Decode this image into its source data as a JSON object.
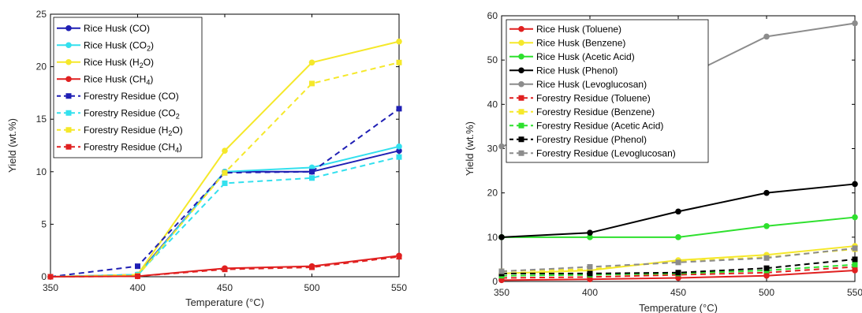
{
  "chart_data": [
    {
      "type": "line",
      "title": "",
      "xlabel": "Temperature (°C)",
      "ylabel": "Yield (wt.%)",
      "x": [
        350,
        400,
        450,
        500,
        550
      ],
      "xlim": [
        350,
        550
      ],
      "ylim": [
        0,
        25
      ],
      "yticks": [
        0,
        5,
        10,
        15,
        20,
        25
      ],
      "xticks": [
        350,
        400,
        450,
        500,
        550
      ],
      "grid": false,
      "legend_position": "top-left",
      "series": [
        {
          "name": "Rice Husk (CO)",
          "name_parts": [
            "Rice Husk (CO)"
          ],
          "values": [
            0,
            0.2,
            10.0,
            10.0,
            12.0
          ],
          "color": "#1f1fb4",
          "dash": false
        },
        {
          "name": "Rice Husk (CO2)",
          "name_parts": [
            "Rice Husk (CO",
            "2",
            ")"
          ],
          "values": [
            0,
            0.1,
            10.0,
            10.4,
            12.4
          ],
          "color": "#33e0ee",
          "dash": false
        },
        {
          "name": "Rice Husk (H2O)",
          "name_parts": [
            "Rice Husk (H",
            "2",
            "O)"
          ],
          "values": [
            0,
            0.2,
            12.0,
            20.4,
            22.4
          ],
          "color": "#f5e82a",
          "dash": false
        },
        {
          "name": "Rice Husk (CH4)",
          "name_parts": [
            "Rice Husk (CH",
            "4",
            ")"
          ],
          "values": [
            0,
            0.05,
            0.8,
            1.0,
            2.0
          ],
          "color": "#e02020",
          "dash": false
        },
        {
          "name": "Forestry Residue (CO)",
          "name_parts": [
            "Forestry Residue (CO)"
          ],
          "values": [
            0,
            1.0,
            9.9,
            10.0,
            16.0
          ],
          "color": "#1f1fb4",
          "dash": true
        },
        {
          "name": "Forestry Residue (CO2)",
          "name_parts": [
            "Forestry Residue (CO",
            "2",
            ""
          ],
          "values": [
            0,
            0.2,
            8.9,
            9.4,
            11.4
          ],
          "color": "#33e0ee",
          "dash": true
        },
        {
          "name": "Forestry Residue (H2O)",
          "name_parts": [
            "Forestry Residue (H",
            "2",
            "O)"
          ],
          "values": [
            0,
            0.1,
            9.9,
            18.4,
            20.4
          ],
          "color": "#f5e82a",
          "dash": true
        },
        {
          "name": "Forestry Residue (CH4)",
          "name_parts": [
            "Forestry Residue (CH",
            "4",
            ")"
          ],
          "values": [
            0,
            0.05,
            0.7,
            0.9,
            1.9
          ],
          "color": "#e02020",
          "dash": true
        }
      ]
    },
    {
      "type": "line",
      "title": "",
      "xlabel": "Temperature (°C)",
      "ylabel": "Yield (wt.%)",
      "x": [
        350,
        400,
        450,
        500,
        550
      ],
      "xlim": [
        350,
        550
      ],
      "ylim": [
        0,
        60
      ],
      "yticks": [
        0,
        10,
        20,
        30,
        40,
        50,
        60
      ],
      "xticks": [
        350,
        400,
        450,
        500,
        550
      ],
      "grid": false,
      "legend_position": "top-left",
      "series": [
        {
          "name": "Rice Husk (Toluene)",
          "name_parts": [
            "Rice Husk (Toluene)"
          ],
          "values": [
            0.3,
            0.5,
            0.8,
            1.3,
            2.5
          ],
          "color": "#e02020",
          "dash": false
        },
        {
          "name": "Rice Husk (Benzene)",
          "name_parts": [
            "Rice Husk (Benzene)"
          ],
          "values": [
            1.8,
            2.5,
            4.8,
            6.0,
            8.0
          ],
          "color": "#f5e82a",
          "dash": false
        },
        {
          "name": "Rice Husk (Acetic Acid)",
          "name_parts": [
            "Rice Husk (Acetic Acid)"
          ],
          "values": [
            10.0,
            10.0,
            10.0,
            12.5,
            14.5
          ],
          "color": "#2ee02e",
          "dash": false
        },
        {
          "name": "Rice Husk (Phenol)",
          "name_parts": [
            "Rice Husk (Phenol)"
          ],
          "values": [
            10.0,
            11.0,
            15.8,
            20.0,
            22.0
          ],
          "color": "#000000",
          "dash": false
        },
        {
          "name": "Rice Husk (Levoglucosan)",
          "name_parts": [
            "Rice Husk (Levoglucosan)"
          ],
          "values": [
            30.5,
            36.5,
            45.5,
            55.3,
            58.3
          ],
          "color": "#8c8c8c",
          "dash": false
        },
        {
          "name": "Forestry Residue (Toluene)",
          "name_parts": [
            "Forestry Residue (Toluene)"
          ],
          "values": [
            0.8,
            1.0,
            1.5,
            2.0,
            3.3
          ],
          "color": "#e02020",
          "dash": true
        },
        {
          "name": "Forestry Residue (Benzene)",
          "name_parts": [
            "Forestry Residue (Benzene)"
          ],
          "values": [
            2.3,
            2.8,
            4.5,
            5.5,
            7.3
          ],
          "color": "#f5e82a",
          "dash": true
        },
        {
          "name": "Forestry Residue (Acetic Acid)",
          "name_parts": [
            "Forestry Residue (Acetic Acid)"
          ],
          "values": [
            1.3,
            1.5,
            1.8,
            2.5,
            3.8
          ],
          "color": "#2ee02e",
          "dash": true
        },
        {
          "name": "Forestry Residue (Phenol)",
          "name_parts": [
            "Forestry Residue (Phenol)"
          ],
          "values": [
            1.8,
            1.8,
            2.0,
            3.0,
            5.0
          ],
          "color": "#000000",
          "dash": true
        },
        {
          "name": "Forestry Residue (Levoglucosan)",
          "name_parts": [
            "Forestry Residue (Levoglucosan)"
          ],
          "values": [
            2.3,
            3.3,
            4.3,
            5.3,
            7.5
          ],
          "color": "#8c8c8c",
          "dash": true
        }
      ]
    }
  ]
}
